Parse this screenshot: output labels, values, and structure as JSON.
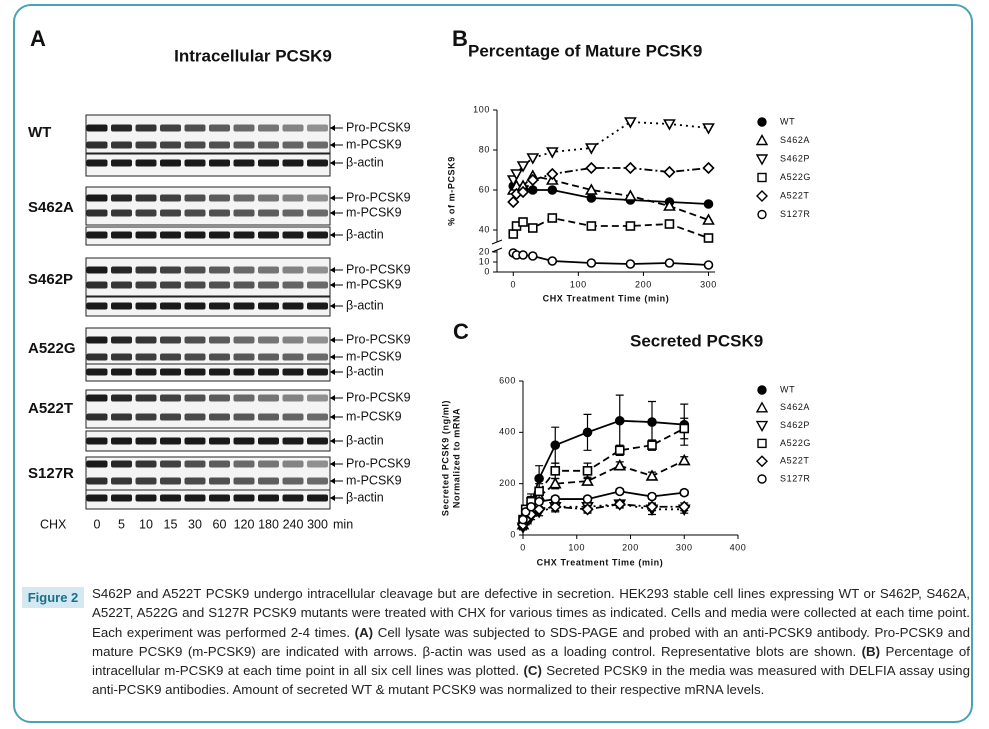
{
  "blot": {
    "panel": "A",
    "title": "Intracellular PCSK9",
    "groups": [
      {
        "name": "WT",
        "bands": [
          "Pro-PCSK9",
          "m-PCSK9",
          "β-actin"
        ]
      },
      {
        "name": "S462A",
        "bands": [
          "Pro-PCSK9",
          "m-PCSK9",
          "β-actin"
        ]
      },
      {
        "name": "S462P",
        "bands": [
          "Pro-PCSK9",
          "m-PCSK9",
          "β-actin"
        ]
      },
      {
        "name": "A522G",
        "bands": [
          "Pro-PCSK9",
          "m-PCSK9",
          "β-actin"
        ]
      },
      {
        "name": "A522T",
        "bands": [
          "Pro-PCSK9",
          "m-PCSK9",
          "β-actin"
        ]
      },
      {
        "name": "S127R",
        "bands": [
          "Pro-PCSK9",
          "m-PCSK9",
          "β-actin"
        ]
      }
    ],
    "lane_label": "CHX",
    "lanes": [
      0,
      5,
      10,
      15,
      30,
      60,
      120,
      180,
      240,
      300
    ],
    "lane_unit": "min"
  },
  "chart_data": [
    {
      "type": "line",
      "panel": "B",
      "title": "Percentage of Mature PCSK9",
      "x_label": "CHX Treatment Time (min)",
      "y_label": [
        "% of m-PCSK9"
      ],
      "x": [
        0,
        5,
        15,
        30,
        60,
        120,
        180,
        240,
        300
      ],
      "xlim": [
        -25,
        310
      ],
      "xticks": [
        0,
        100,
        200,
        300
      ],
      "ylim": [
        0,
        100
      ],
      "y_break": [
        20,
        35
      ],
      "yticks": [
        0,
        10,
        20,
        40,
        60,
        80,
        100
      ],
      "series": [
        {
          "name": "WT",
          "color": "#000000",
          "marker": "dot",
          "dash": "solid",
          "values": [
            62,
            60,
            61,
            60,
            60,
            56,
            55,
            54,
            53
          ]
        },
        {
          "name": "S462A",
          "color": "#000000",
          "marker": "triangle-up",
          "dash": "dashed",
          "values": [
            60,
            62,
            62,
            67,
            65,
            60,
            57,
            52,
            45
          ]
        },
        {
          "name": "S462P",
          "color": "#000000",
          "marker": "triangle-down",
          "dash": "dotted",
          "values": [
            65,
            68,
            72,
            76,
            79,
            81,
            94,
            93,
            91
          ]
        },
        {
          "name": "A522G",
          "color": "#000000",
          "marker": "square",
          "dash": "dashed",
          "values": [
            38,
            42,
            44,
            41,
            46,
            42,
            42,
            43,
            36
          ]
        },
        {
          "name": "A522T",
          "color": "#000000",
          "marker": "diamond",
          "dash": "dashdot",
          "values": [
            54,
            58,
            59,
            65,
            68,
            71,
            71,
            69,
            71
          ]
        },
        {
          "name": "S127R",
          "color": "#000000",
          "marker": "circle",
          "dash": "solid",
          "values": [
            19,
            17,
            17,
            16,
            11,
            9,
            8,
            9,
            7
          ]
        }
      ]
    },
    {
      "type": "line",
      "panel": "C",
      "title": "Secreted PCSK9",
      "x_label": "CHX Treatment Time (min)",
      "y_label": [
        "Secreted PCSK9 (ng/ml)",
        "Normalized to mRNA"
      ],
      "x": [
        0,
        5,
        15,
        30,
        60,
        120,
        180,
        240,
        300
      ],
      "xlim": [
        0,
        400
      ],
      "xticks": [
        0,
        100,
        200,
        300,
        400
      ],
      "ylim": [
        0,
        600
      ],
      "yticks": [
        0,
        200,
        400,
        600
      ],
      "series": [
        {
          "name": "WT",
          "color": "#000000",
          "marker": "dot",
          "dash": "solid",
          "values": [
            50,
            80,
            120,
            220,
            350,
            400,
            445,
            440,
            430
          ],
          "errors": [
            20,
            30,
            40,
            50,
            70,
            70,
            100,
            80,
            80
          ]
        },
        {
          "name": "S462A",
          "color": "#000000",
          "marker": "triangle-up",
          "dash": "dashed",
          "values": [
            40,
            60,
            90,
            150,
            200,
            210,
            270,
            230,
            290
          ],
          "errors": [
            10,
            10,
            15,
            20,
            20,
            15,
            15,
            15,
            15
          ]
        },
        {
          "name": "S462P",
          "color": "#000000",
          "marker": "triangle-down",
          "dash": "dotted",
          "values": [
            30,
            50,
            70,
            90,
            110,
            110,
            120,
            100,
            100
          ],
          "errors": [
            10,
            10,
            10,
            15,
            20,
            20,
            15,
            20,
            15
          ]
        },
        {
          "name": "A522G",
          "color": "#000000",
          "marker": "square",
          "dash": "dashed",
          "values": [
            60,
            100,
            130,
            170,
            250,
            250,
            330,
            350,
            415
          ],
          "errors": [
            10,
            15,
            20,
            30,
            30,
            30,
            20,
            20,
            40
          ]
        },
        {
          "name": "A522T",
          "color": "#000000",
          "marker": "diamond",
          "dash": "dashdot",
          "values": [
            40,
            60,
            80,
            100,
            110,
            100,
            120,
            110,
            110
          ],
          "errors": [
            10,
            10,
            10,
            10,
            15,
            15,
            10,
            15,
            15
          ]
        },
        {
          "name": "S127R",
          "color": "#000000",
          "marker": "circle",
          "dash": "solid",
          "values": [
            60,
            90,
            110,
            130,
            140,
            140,
            170,
            150,
            165
          ],
          "errors": [
            10,
            10,
            10,
            10,
            10,
            10,
            10,
            10,
            10
          ]
        }
      ]
    }
  ],
  "caption": {
    "label": "Figure 2",
    "intro": "S462P and A522T PCSK9 undergo intracellular cleavage but are defective in secretion. HEK293 stable cell lines expressing WT or S462P, S462A, A522T, A522G and S127R PCSK9 mutants were treated with CHX for various times as indicated. Cells and media were collected at each time point. Each experiment was performed 2-4 times.",
    "items": [
      {
        "tag": "(A)",
        "text": "Cell lysate was subjected to SDS-PAGE and probed with an anti-PCSK9 antibody. Pro-PCSK9 and mature PCSK9 (m-PCSK9) are indicated with arrows. β-actin was used as a loading control. Representative blots are shown."
      },
      {
        "tag": "(B)",
        "text": "Percentage of intracellular m-PCSK9 at each time point in all six cell lines was plotted."
      },
      {
        "tag": "(C)",
        "text": "Secreted PCSK9 in the media was measured with DELFIA assay using anti-PCSK9 antibodies. Amount of secreted WT & mutant PCSK9 was normalized to their respective mRNA levels."
      }
    ]
  }
}
